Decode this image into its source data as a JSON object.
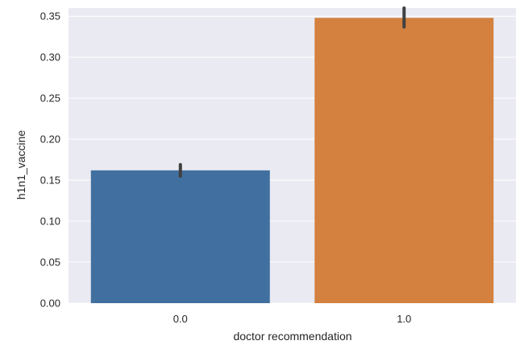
{
  "chart_data": {
    "type": "bar",
    "categories": [
      "0.0",
      "1.0"
    ],
    "values": [
      0.162,
      0.348
    ],
    "error_bars": [
      {
        "low": 0.155,
        "high": 0.169
      },
      {
        "low": 0.337,
        "high": 0.36
      }
    ],
    "xlabel": "doctor recommendation",
    "ylabel": "h1n1_vaccine",
    "ylim": [
      0,
      0.36
    ],
    "yticks": [
      "0.00",
      "0.05",
      "0.10",
      "0.15",
      "0.20",
      "0.25",
      "0.30",
      "0.35"
    ],
    "grid": true,
    "colors": {
      "background": "#eaeaf2",
      "grid": "#ffffff",
      "bars": [
        "#4170a0",
        "#d4813f"
      ],
      "error_bar": "#404040"
    }
  }
}
